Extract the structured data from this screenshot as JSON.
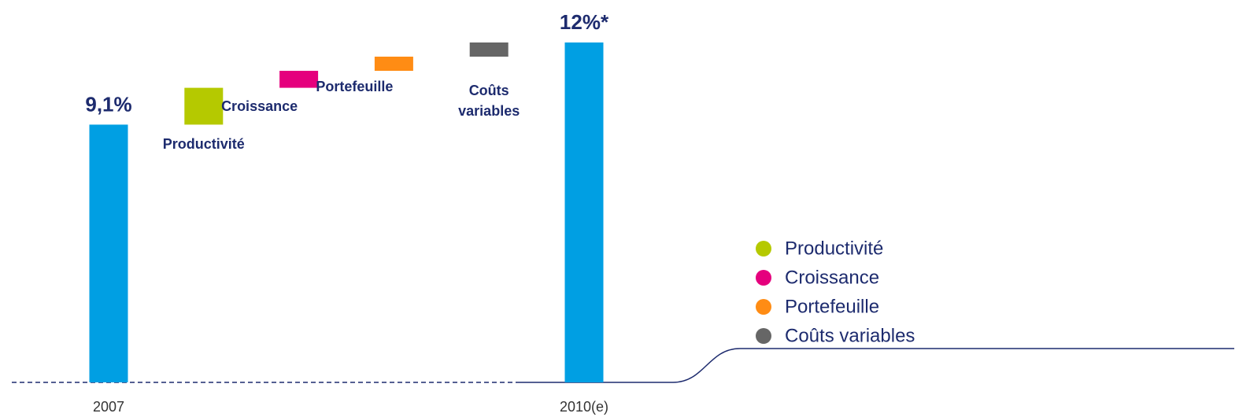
{
  "chart_data": {
    "type": "waterfall",
    "categories": [
      "2007",
      "Productivité",
      "Croissance",
      "Portefeuille",
      "Coûts variables",
      "2010(e)"
    ],
    "values": [
      9.1,
      1.3,
      0.6,
      0.5,
      0.5,
      12
    ],
    "value_labels": [
      "9,1%",
      null,
      null,
      null,
      null,
      "12%*"
    ],
    "measures": [
      "absolute",
      "relative",
      "relative",
      "relative",
      "relative",
      "total"
    ],
    "colors": [
      "#009fe3",
      "#b5c900",
      "#e5007d",
      "#ff8c14",
      "#666666",
      "#009fe3"
    ],
    "ylim": [
      0,
      13.5
    ],
    "legend": [
      1,
      2,
      3,
      4
    ]
  }
}
